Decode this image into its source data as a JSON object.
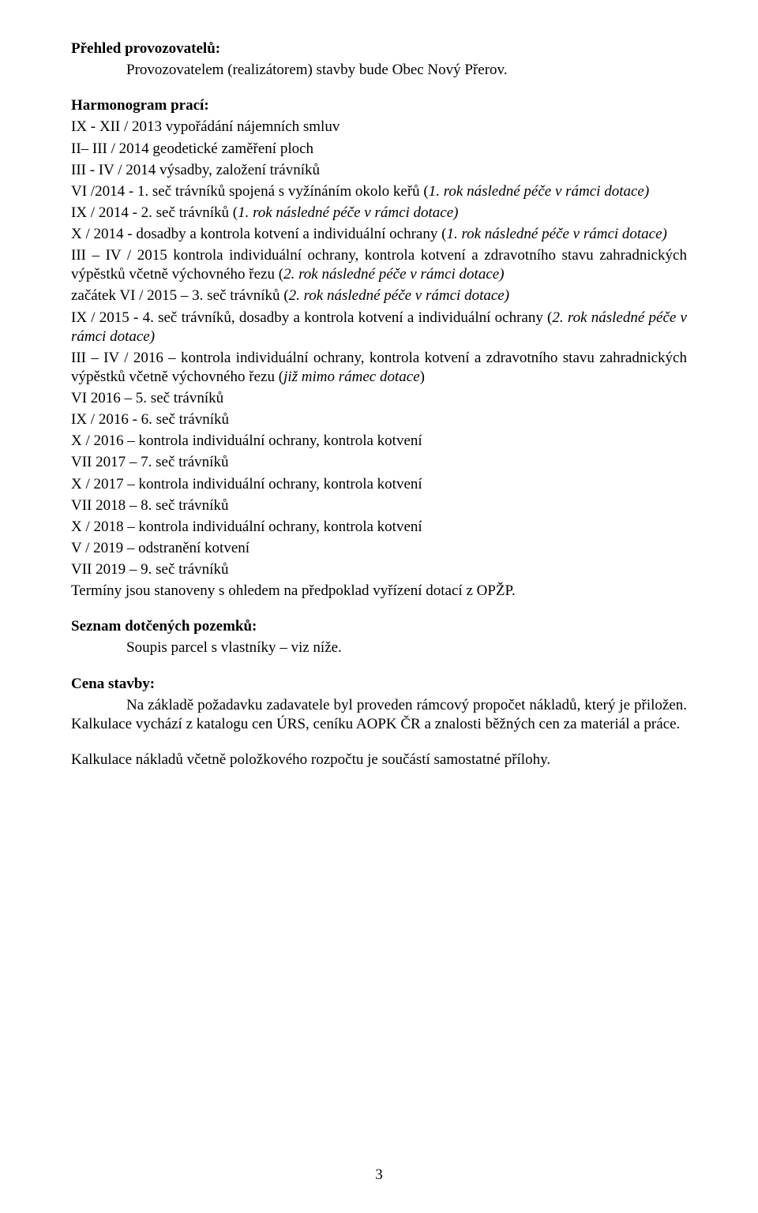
{
  "section_overview": {
    "heading": "Přehled provozovatelů:",
    "body": "Provozovatelem (realizátorem) stavby bude Obec Nový Přerov."
  },
  "section_schedule": {
    "heading": "Harmonogram prací:",
    "l1": "IX - XII / 2013 vypořádání nájemních smluv",
    "l2": "II– III / 2014 geodetické zaměření ploch",
    "l3": "III - IV / 2014 výsadby, založení trávníků",
    "l4a": "VI /2014 - 1. seč trávníků spojená s vyžínáním okolo keřů (",
    "l4i": "1. rok následné péče v rámci dotace)",
    "l5a": "IX / 2014 - 2. seč trávníků (",
    "l5i": "1. rok následné péče v rámci dotace)",
    "l6a": "X / 2014 -  dosadby a kontrola kotvení a individuální ochrany (",
    "l6i": "1. rok následné péče v rámci dotace)",
    "l7": "III – IV / 2015 kontrola individuální ochrany, kontrola kotvení a zdravotního stavu zahradnických výpěstků včetně výchovného řezu (",
    "l7i": "2. rok následné péče v rámci dotace)",
    "l8a": "začátek VI / 2015 – 3. seč trávníků (",
    "l8i": "2. rok následné péče v rámci dotace)",
    "l9a": "IX / 2015 -  4. seč trávníků, dosadby a kontrola kotvení a individuální ochrany (",
    "l9i": "2. rok následné péče v rámci dotace)",
    "l10": "III – IV / 2016 – kontrola individuální ochrany, kontrola kotvení a zdravotního stavu zahradnických výpěstků včetně výchovného řezu (",
    "l10i": "již mimo rámec dotace",
    "l10b": ")",
    "l11": "VI 2016 – 5. seč trávníků",
    "l12": "IX / 2016 -  6. seč trávníků",
    "l13": "X / 2016 – kontrola individuální ochrany, kontrola kotvení",
    "l14": "VII 2017 – 7. seč trávníků",
    "l15": "X / 2017 – kontrola individuální ochrany, kontrola kotvení",
    "l16": "VII 2018 – 8. seč trávníků",
    "l17": "X / 2018 – kontrola individuální ochrany, kontrola kotvení",
    "l18": "V / 2019 – odstranění kotvení",
    "l19": "VII 2019 – 9. seč trávníků",
    "l20": "Termíny jsou stanoveny s ohledem na předpoklad vyřízení dotací z OPŽP."
  },
  "section_parcels": {
    "heading": "Seznam dotčených pozemků:",
    "body": "Soupis parcel s vlastníky – viz níže."
  },
  "section_price": {
    "heading": "Cena stavby:",
    "p1": "Na základě požadavku zadavatele byl proveden rámcový propočet nákladů, který je přiložen. Kalkulace vychází z katalogu cen ÚRS, ceníku AOPK ČR a znalosti běžných cen za materiál a práce.",
    "p2": "Kalkulace nákladů včetně položkového rozpočtu je součástí samostatné přílohy."
  },
  "page_number": "3"
}
